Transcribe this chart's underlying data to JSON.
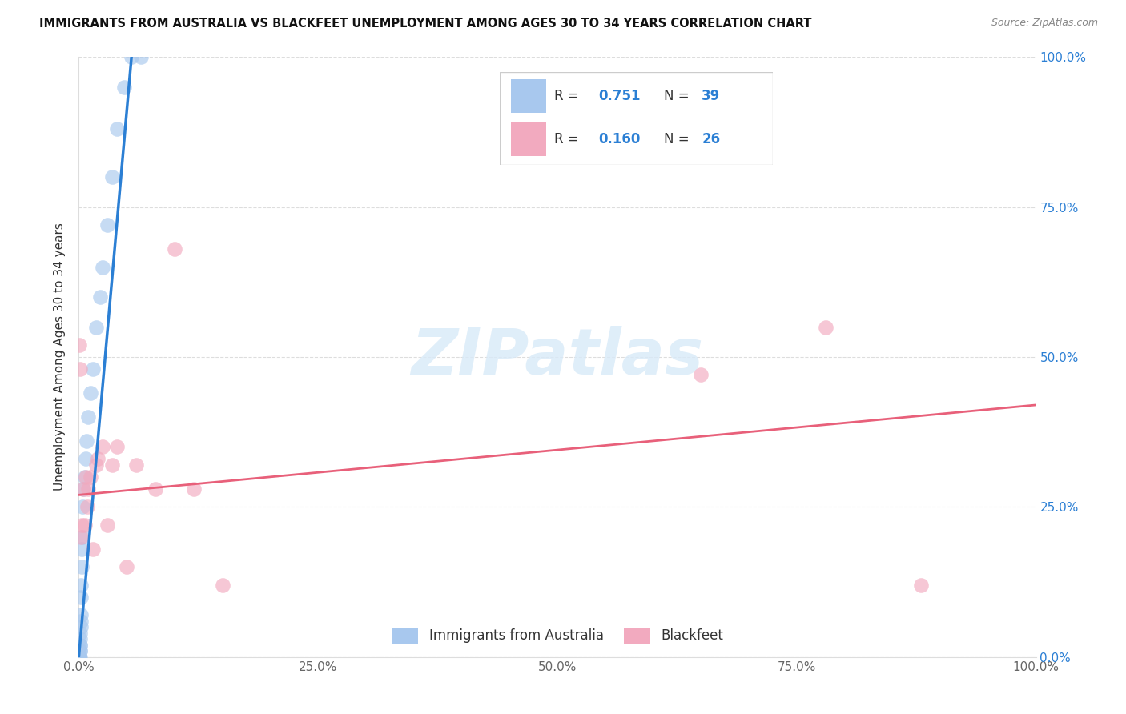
{
  "title": "IMMIGRANTS FROM AUSTRALIA VS BLACKFEET UNEMPLOYMENT AMONG AGES 30 TO 34 YEARS CORRELATION CHART",
  "source": "Source: ZipAtlas.com",
  "ylabel": "Unemployment Among Ages 30 to 34 years",
  "xlim": [
    0,
    1.0
  ],
  "ylim": [
    0,
    1.0
  ],
  "xtick_vals": [
    0,
    0.25,
    0.5,
    0.75,
    1.0
  ],
  "xtick_labels": [
    "0.0%",
    "25.0%",
    "50.0%",
    "75.0%",
    "100.0%"
  ],
  "ytick_vals": [
    0,
    0.25,
    0.5,
    0.75,
    1.0
  ],
  "right_ytick_labels": [
    "0.0%",
    "25.0%",
    "50.0%",
    "75.0%",
    "100.0%"
  ],
  "blue_R": "0.751",
  "blue_N": "39",
  "pink_R": "0.160",
  "pink_N": "26",
  "blue_label": "Immigrants from Australia",
  "pink_label": "Blackfeet",
  "blue_dot_color": "#A8C8EE",
  "pink_dot_color": "#F2AABF",
  "blue_line_color": "#2B7FD4",
  "pink_line_color": "#E8607A",
  "text_color_blue": "#2B7FD4",
  "text_color_dark": "#333333",
  "watermark_color": "#D8EAF8",
  "background_color": "#FFFFFF",
  "grid_color": "#DDDDDD",
  "blue_scatter_x": [
    0.0003,
    0.0004,
    0.0005,
    0.0006,
    0.0007,
    0.0008,
    0.0009,
    0.001,
    0.001,
    0.0012,
    0.0013,
    0.0014,
    0.0015,
    0.0016,
    0.0018,
    0.002,
    0.002,
    0.0022,
    0.0025,
    0.003,
    0.003,
    0.0035,
    0.004,
    0.005,
    0.006,
    0.007,
    0.008,
    0.01,
    0.012,
    0.015,
    0.018,
    0.022,
    0.025,
    0.03,
    0.035,
    0.04,
    0.047,
    0.055,
    0.065
  ],
  "blue_scatter_y": [
    0.0,
    0.0,
    0.0,
    0.0,
    0.0,
    0.0,
    0.0,
    0.0,
    0.01,
    0.01,
    0.02,
    0.02,
    0.03,
    0.04,
    0.05,
    0.06,
    0.07,
    0.1,
    0.12,
    0.15,
    0.18,
    0.2,
    0.25,
    0.28,
    0.3,
    0.33,
    0.36,
    0.4,
    0.44,
    0.48,
    0.55,
    0.6,
    0.65,
    0.72,
    0.8,
    0.88,
    0.95,
    1.0,
    1.0
  ],
  "pink_scatter_x": [
    0.0005,
    0.001,
    0.002,
    0.003,
    0.005,
    0.006,
    0.007,
    0.009,
    0.01,
    0.012,
    0.015,
    0.018,
    0.02,
    0.025,
    0.03,
    0.035,
    0.04,
    0.05,
    0.06,
    0.08,
    0.1,
    0.12,
    0.15,
    0.65,
    0.78,
    0.88
  ],
  "pink_scatter_y": [
    0.52,
    0.48,
    0.2,
    0.22,
    0.28,
    0.22,
    0.3,
    0.25,
    0.28,
    0.3,
    0.18,
    0.32,
    0.33,
    0.35,
    0.22,
    0.32,
    0.35,
    0.15,
    0.32,
    0.28,
    0.68,
    0.28,
    0.12,
    0.47,
    0.55,
    0.12
  ],
  "blue_trend_x": [
    0.0,
    0.055
  ],
  "blue_trend_y": [
    0.0,
    1.0
  ],
  "pink_trend_x": [
    0.0,
    1.0
  ],
  "pink_trend_y": [
    0.27,
    0.42
  ],
  "legend_R_label": "R = ",
  "legend_N_label": "N = "
}
